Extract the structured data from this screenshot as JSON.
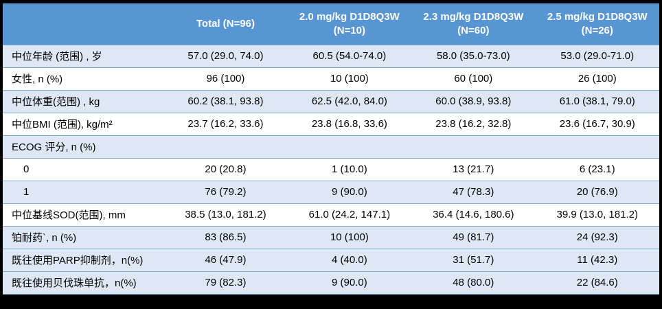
{
  "colors": {
    "canvas_bg": "#000000",
    "header_bg": "#5795d3",
    "header_text": "#ffffff",
    "band_bg": "#dee8f5",
    "row_line": "#7fa9d8",
    "body_text": "#000000"
  },
  "table": {
    "columns": [
      "",
      "Total (N=96)",
      "2.0 mg/kg D1D8Q3W (N=10)",
      "2.3 mg/kg D1D8Q3W (N=60)",
      "2.5 mg/kg D1D8Q3W (N=26)"
    ],
    "rows": [
      {
        "label": "中位年龄 (范围) , 岁",
        "indent": false,
        "shade": true,
        "values": [
          "57.0 (29.0, 74.0)",
          "60.5 (54.0-74.0)",
          "58.0 (35.0-73.0)",
          "53.0 (29.0-71.0)"
        ]
      },
      {
        "label": "女性, n (%)",
        "indent": false,
        "shade": false,
        "values": [
          "96 (100)",
          "10 (100)",
          "60 (100)",
          "26 (100)"
        ]
      },
      {
        "label": "中位体重(范围) , kg",
        "indent": false,
        "shade": true,
        "values": [
          "60.2 (38.1, 93.8)",
          "62.5 (42.0, 84.0)",
          "60.0 (38.9, 93.8)",
          "61.0 (38.1, 79.0)"
        ]
      },
      {
        "label": "中位BMI (范围), kg/m²",
        "indent": false,
        "shade": false,
        "values": [
          "23.7 (16.2, 33.6)",
          "23.8 (16.8, 33.6)",
          "23.8 (16.2, 32.8)",
          "23.6 (16.7, 30.9)"
        ]
      },
      {
        "label": "ECOG 评分, n (%)",
        "indent": false,
        "shade": true,
        "values": [
          "",
          "",
          "",
          ""
        ]
      },
      {
        "label": "0",
        "indent": true,
        "shade": false,
        "values": [
          "20 (20.8)",
          "1 (10.0)",
          "13 (21.7)",
          "6 (23.1)"
        ]
      },
      {
        "label": "1",
        "indent": true,
        "shade": true,
        "values": [
          "76 (79.2)",
          "9 (90.0)",
          "47 (78.3)",
          "20 (76.9)"
        ]
      },
      {
        "label": "中位基线SOD(范围), mm",
        "indent": false,
        "shade": false,
        "values": [
          "38.5 (13.0, 181.2)",
          "61.0 (24.2, 147.1)",
          "36.4 (14.6, 180.6)",
          "39.9 (13.0, 181.2)"
        ]
      },
      {
        "label": "铂耐药`, n (%)",
        "indent": false,
        "shade": true,
        "values": [
          "83 (86.5)",
          "10 (100)",
          "49 (81.7)",
          "24 (92.3)"
        ]
      },
      {
        "label": "既往使用PARP抑制剂，n(%)",
        "indent": false,
        "shade": true,
        "values": [
          "46 (47.9)",
          "4 (40.0)",
          "31 (51.7)",
          "11 (42.3)"
        ]
      },
      {
        "label": "既往使用贝伐珠单抗，n(%)",
        "indent": false,
        "shade": true,
        "values": [
          "79 (82.3)",
          "9 (90.0)",
          "48 (80.0)",
          "22 (84.6)"
        ]
      }
    ]
  }
}
